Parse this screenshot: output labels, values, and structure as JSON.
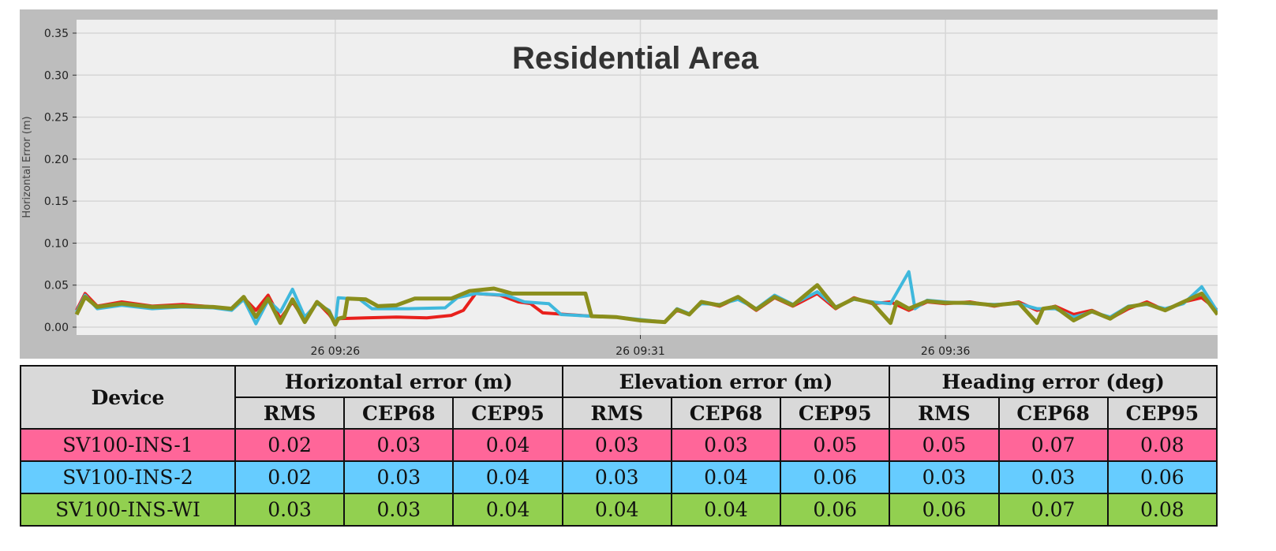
{
  "chart_data": {
    "type": "line",
    "title": "Residential Area",
    "xlabel": "",
    "ylabel": "Horizontal Error (m)",
    "x_unit": "minutes after 09:20",
    "xlim": [
      1.76,
      20.46
    ],
    "ylim": [
      -0.01,
      0.365
    ],
    "yticks": [
      "0.00",
      "0.05",
      "0.10",
      "0.15",
      "0.20",
      "0.25",
      "0.30",
      "0.35"
    ],
    "xticks": [
      {
        "x": 6,
        "label": "26 09:26"
      },
      {
        "x": 11,
        "label": "26 09:31"
      },
      {
        "x": 16,
        "label": "26 09:36"
      }
    ],
    "grid": true,
    "legend": "none",
    "series": [
      {
        "name": "red",
        "color": "#e8201c",
        "points": [
          [
            1.76,
            0.02
          ],
          [
            1.9,
            0.04
          ],
          [
            2.1,
            0.025
          ],
          [
            2.5,
            0.03
          ],
          [
            3,
            0.025
          ],
          [
            3.5,
            0.027
          ],
          [
            4,
            0.024
          ],
          [
            4.3,
            0.022
          ],
          [
            4.5,
            0.035
          ],
          [
            4.7,
            0.02
          ],
          [
            4.9,
            0.038
          ],
          [
            5.1,
            0.01
          ],
          [
            5.3,
            0.03
          ],
          [
            5.5,
            0.008
          ],
          [
            5.7,
            0.03
          ],
          [
            5.9,
            0.015
          ],
          [
            6.0,
            0.005
          ],
          [
            6.05,
            0.01
          ],
          [
            6.5,
            0.011
          ],
          [
            7,
            0.012
          ],
          [
            7.5,
            0.011
          ],
          [
            7.9,
            0.014
          ],
          [
            8.1,
            0.02
          ],
          [
            8.3,
            0.04
          ],
          [
            8.7,
            0.038
          ],
          [
            9.0,
            0.03
          ],
          [
            9.2,
            0.028
          ],
          [
            9.4,
            0.017
          ],
          [
            9.8,
            0.015
          ],
          [
            10.2,
            0.013
          ],
          [
            10.6,
            0.012
          ],
          [
            11.0,
            0.008
          ],
          [
            11.4,
            0.006
          ],
          [
            11.6,
            0.02
          ],
          [
            11.8,
            0.015
          ],
          [
            12.0,
            0.03
          ],
          [
            12.3,
            0.025
          ],
          [
            12.6,
            0.035
          ],
          [
            12.9,
            0.02
          ],
          [
            13.2,
            0.035
          ],
          [
            13.5,
            0.025
          ],
          [
            13.9,
            0.04
          ],
          [
            14.2,
            0.022
          ],
          [
            14.5,
            0.035
          ],
          [
            14.8,
            0.028
          ],
          [
            15.1,
            0.03
          ],
          [
            15.4,
            0.02
          ],
          [
            15.7,
            0.03
          ],
          [
            16.0,
            0.028
          ],
          [
            16.4,
            0.03
          ],
          [
            16.8,
            0.025
          ],
          [
            17.2,
            0.03
          ],
          [
            17.5,
            0.02
          ],
          [
            17.8,
            0.025
          ],
          [
            18.1,
            0.015
          ],
          [
            18.4,
            0.02
          ],
          [
            18.7,
            0.01
          ],
          [
            19.0,
            0.022
          ],
          [
            19.3,
            0.03
          ],
          [
            19.6,
            0.02
          ],
          [
            19.9,
            0.03
          ],
          [
            20.2,
            0.035
          ],
          [
            20.46,
            0.02
          ]
        ]
      },
      {
        "name": "cyan",
        "color": "#3fb8dc",
        "points": [
          [
            1.76,
            0.018
          ],
          [
            1.9,
            0.038
          ],
          [
            2.1,
            0.022
          ],
          [
            2.5,
            0.026
          ],
          [
            3,
            0.022
          ],
          [
            3.5,
            0.024
          ],
          [
            4,
            0.023
          ],
          [
            4.3,
            0.02
          ],
          [
            4.5,
            0.033
          ],
          [
            4.7,
            0.004
          ],
          [
            4.9,
            0.032
          ],
          [
            5.1,
            0.018
          ],
          [
            5.3,
            0.045
          ],
          [
            5.5,
            0.012
          ],
          [
            5.7,
            0.028
          ],
          [
            5.9,
            0.02
          ],
          [
            6.0,
            0.004
          ],
          [
            6.05,
            0.035
          ],
          [
            6.4,
            0.033
          ],
          [
            6.6,
            0.022
          ],
          [
            7.2,
            0.022
          ],
          [
            7.8,
            0.023
          ],
          [
            8.0,
            0.035
          ],
          [
            8.3,
            0.04
          ],
          [
            8.8,
            0.038
          ],
          [
            9.1,
            0.03
          ],
          [
            9.5,
            0.028
          ],
          [
            9.7,
            0.015
          ],
          [
            10.2,
            0.013
          ],
          [
            10.6,
            0.012
          ],
          [
            11.0,
            0.009
          ],
          [
            11.4,
            0.006
          ],
          [
            11.6,
            0.022
          ],
          [
            11.8,
            0.016
          ],
          [
            12.0,
            0.028
          ],
          [
            12.3,
            0.027
          ],
          [
            12.6,
            0.033
          ],
          [
            12.9,
            0.022
          ],
          [
            13.2,
            0.038
          ],
          [
            13.5,
            0.027
          ],
          [
            13.9,
            0.042
          ],
          [
            14.2,
            0.024
          ],
          [
            14.5,
            0.033
          ],
          [
            14.8,
            0.03
          ],
          [
            15.1,
            0.028
          ],
          [
            15.4,
            0.066
          ],
          [
            15.5,
            0.022
          ],
          [
            15.7,
            0.032
          ],
          [
            16.0,
            0.03
          ],
          [
            16.4,
            0.028
          ],
          [
            16.8,
            0.027
          ],
          [
            17.2,
            0.028
          ],
          [
            17.5,
            0.022
          ],
          [
            17.8,
            0.022
          ],
          [
            18.1,
            0.012
          ],
          [
            18.4,
            0.018
          ],
          [
            18.7,
            0.012
          ],
          [
            19.0,
            0.025
          ],
          [
            19.3,
            0.027
          ],
          [
            19.6,
            0.022
          ],
          [
            19.9,
            0.028
          ],
          [
            20.2,
            0.048
          ],
          [
            20.46,
            0.018
          ]
        ]
      },
      {
        "name": "olive",
        "color": "#8a8e1c",
        "points": [
          [
            1.76,
            0.015
          ],
          [
            1.9,
            0.036
          ],
          [
            2.1,
            0.024
          ],
          [
            2.5,
            0.028
          ],
          [
            3,
            0.024
          ],
          [
            3.5,
            0.025
          ],
          [
            4,
            0.024
          ],
          [
            4.3,
            0.022
          ],
          [
            4.5,
            0.036
          ],
          [
            4.7,
            0.012
          ],
          [
            4.9,
            0.034
          ],
          [
            5.1,
            0.005
          ],
          [
            5.3,
            0.033
          ],
          [
            5.5,
            0.006
          ],
          [
            5.7,
            0.03
          ],
          [
            5.9,
            0.018
          ],
          [
            6.0,
            0.003
          ],
          [
            6.05,
            0.01
          ],
          [
            6.15,
            0.012
          ],
          [
            6.2,
            0.034
          ],
          [
            6.5,
            0.033
          ],
          [
            6.7,
            0.025
          ],
          [
            7.0,
            0.026
          ],
          [
            7.3,
            0.034
          ],
          [
            7.9,
            0.034
          ],
          [
            8.2,
            0.043
          ],
          [
            8.6,
            0.046
          ],
          [
            8.9,
            0.04
          ],
          [
            9.6,
            0.04
          ],
          [
            10.1,
            0.04
          ],
          [
            10.2,
            0.013
          ],
          [
            10.6,
            0.012
          ],
          [
            11.0,
            0.008
          ],
          [
            11.4,
            0.006
          ],
          [
            11.6,
            0.021
          ],
          [
            11.8,
            0.015
          ],
          [
            12.0,
            0.03
          ],
          [
            12.3,
            0.026
          ],
          [
            12.6,
            0.036
          ],
          [
            12.9,
            0.021
          ],
          [
            13.2,
            0.036
          ],
          [
            13.5,
            0.026
          ],
          [
            13.9,
            0.05
          ],
          [
            14.2,
            0.023
          ],
          [
            14.5,
            0.034
          ],
          [
            14.8,
            0.029
          ],
          [
            15.1,
            0.005
          ],
          [
            15.2,
            0.03
          ],
          [
            15.4,
            0.022
          ],
          [
            15.7,
            0.031
          ],
          [
            16.0,
            0.029
          ],
          [
            16.4,
            0.029
          ],
          [
            16.8,
            0.026
          ],
          [
            17.2,
            0.029
          ],
          [
            17.5,
            0.005
          ],
          [
            17.6,
            0.022
          ],
          [
            17.8,
            0.024
          ],
          [
            18.1,
            0.008
          ],
          [
            18.4,
            0.019
          ],
          [
            18.7,
            0.01
          ],
          [
            19.0,
            0.024
          ],
          [
            19.3,
            0.028
          ],
          [
            19.6,
            0.02
          ],
          [
            19.9,
            0.03
          ],
          [
            20.2,
            0.04
          ],
          [
            20.46,
            0.015
          ]
        ]
      }
    ]
  },
  "table": {
    "device_header": "Device",
    "groups": [
      "Horizontal error (m)",
      "Elevation error (m)",
      "Heading error (deg)"
    ],
    "subheaders": [
      "RMS",
      "CEP68",
      "CEP95",
      "RMS",
      "CEP68",
      "CEP95",
      "RMS",
      "CEP68",
      "CEP95"
    ],
    "rows": [
      {
        "device": "SV100-INS-1",
        "values": [
          "0.02",
          "0.03",
          "0.04",
          "0.03",
          "0.03",
          "0.05",
          "0.05",
          "0.07",
          "0.08"
        ]
      },
      {
        "device": "SV100-INS-2",
        "values": [
          "0.02",
          "0.03",
          "0.04",
          "0.03",
          "0.04",
          "0.06",
          "0.03",
          "0.03",
          "0.06"
        ]
      },
      {
        "device": "SV100-INS-WI",
        "values": [
          "0.03",
          "0.03",
          "0.04",
          "0.04",
          "0.04",
          "0.06",
          "0.06",
          "0.07",
          "0.08"
        ]
      }
    ]
  }
}
